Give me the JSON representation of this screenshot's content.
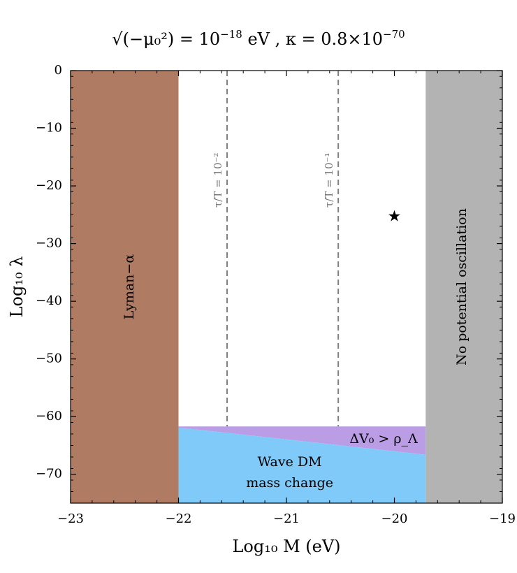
{
  "chart_data": {
    "type": "region-plot",
    "title": "√(−μ₀²) = 10⁻¹⁸ eV ,  κ = 0.8×10⁻⁷⁰",
    "title_parts": {
      "lhs": "√(−μ₀²)",
      "eq1": " = 10",
      "exp1": "−18",
      "unit1": " eV ,  κ = 0.8×10",
      "exp2": "−70"
    },
    "xlabel": "Log₁₀ M (eV)",
    "ylabel": "Log₁₀ λ",
    "xlim": [
      -23,
      -19
    ],
    "ylim": [
      -75,
      0
    ],
    "x_ticks": [
      -23,
      -22,
      -21,
      -20,
      -19
    ],
    "x_tick_labels": [
      "−23",
      "−22",
      "−21",
      "−20",
      "−19"
    ],
    "y_ticks": [
      0,
      -10,
      -20,
      -30,
      -40,
      -50,
      -60,
      -70
    ],
    "y_tick_labels": [
      "0",
      "−10",
      "−20",
      "−30",
      "−40",
      "−50",
      "−60",
      "−70"
    ],
    "regions": [
      {
        "name": "Lyman-α",
        "label": "Lyman−α",
        "color": "#af7c63",
        "polygon": [
          [
            -23,
            0
          ],
          [
            -22,
            0
          ],
          [
            -22,
            -75
          ],
          [
            -23,
            -75
          ]
        ],
        "label_pos": [
          -22.45,
          -37.5
        ],
        "label_rotation": -90
      },
      {
        "name": "No potential oscillation",
        "label": "No potential oscillation",
        "color": "#b3b3b3",
        "polygon": [
          [
            -19.71,
            0
          ],
          [
            -19,
            0
          ],
          [
            -19,
            -75
          ],
          [
            -19.71,
            -75
          ]
        ],
        "label_pos": [
          -19.37,
          -37.5
        ],
        "label_rotation": -90
      },
      {
        "name": "Delta V0 > rho Lambda",
        "label": "ΔV₀ > ρ_Λ",
        "color": "#bb9de6",
        "polygon": [
          [
            -22,
            -61.7
          ],
          [
            -19.71,
            -61.7
          ],
          [
            -19.71,
            -66.6
          ],
          [
            -22,
            -61.9
          ]
        ],
        "label_pos": [
          -20.1,
          -64.0
        ],
        "label_rotation": 0
      },
      {
        "name": "Wave DM mass change",
        "label": [
          "Wave DM",
          "mass change"
        ],
        "color": "#80caf9",
        "polygon": [
          [
            -22,
            -61.9
          ],
          [
            -19.71,
            -66.6
          ],
          [
            -19.71,
            -75
          ],
          [
            -22,
            -75
          ]
        ],
        "label_pos": [
          -20.97,
          -68.6
        ],
        "label_rotation": 0
      }
    ],
    "dashed_lines": [
      {
        "x": -21.55,
        "label": "τ/T = 10⁻²",
        "label_y": -19
      },
      {
        "x": -20.52,
        "label": "τ/T = 10⁻¹",
        "label_y": -19
      }
    ],
    "dashed_line_top": 0,
    "dashed_line_bottom": -61.7,
    "marker": {
      "x": -20.0,
      "y": -25.3,
      "symbol": "★"
    },
    "colors": {
      "frame": "#000000",
      "dashed": "#808080"
    }
  }
}
